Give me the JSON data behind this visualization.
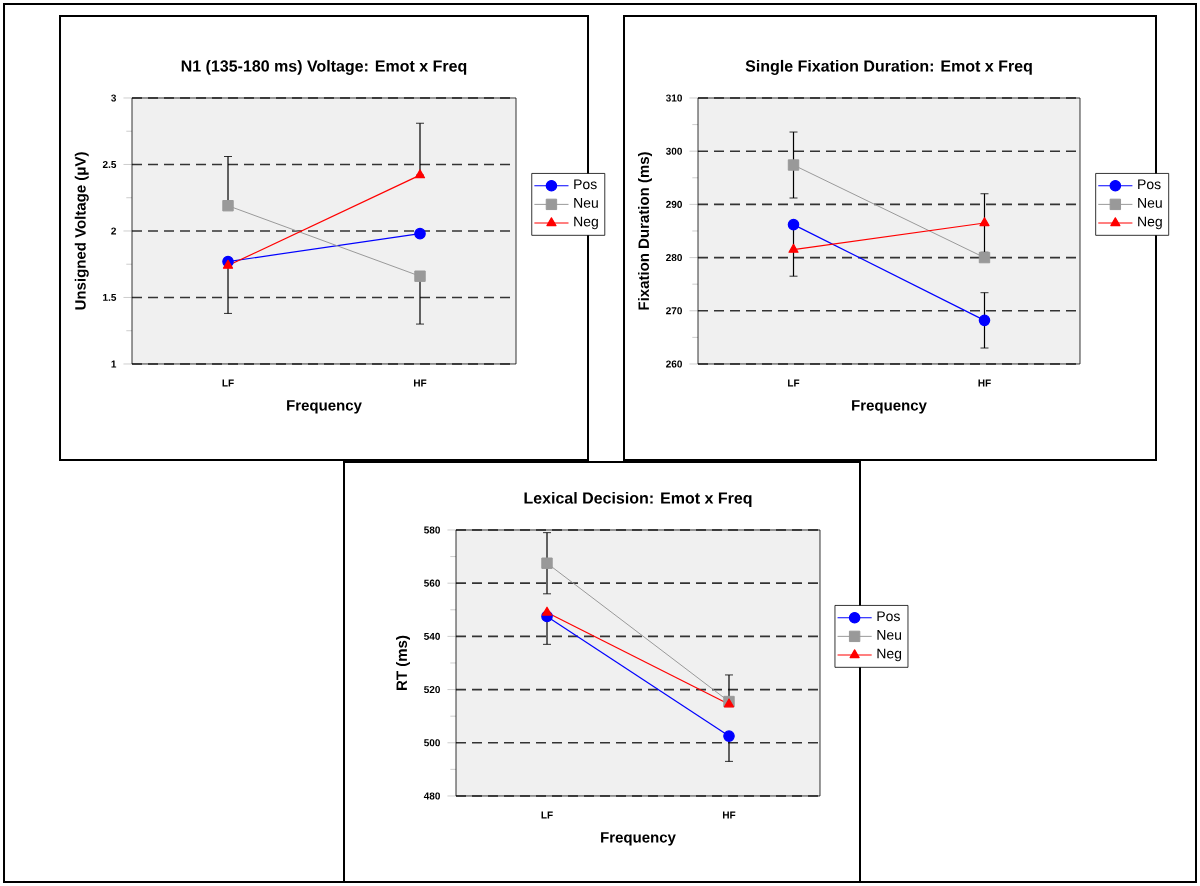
{
  "chart_data": [
    {
      "type": "line",
      "title": "N1 (135-180 ms) Voltage:  Emot x Freq",
      "xlabel": "Frequency",
      "ylabel": "Unsigned Voltage (μV)",
      "categories": [
        "LF",
        "HF"
      ],
      "ylim": [
        1,
        3
      ],
      "yticks": [
        1,
        1.5,
        2,
        2.5,
        3
      ],
      "grid": "y",
      "legend": "right",
      "series": [
        {
          "name": "Pos",
          "color": "#0000ff",
          "marker": "circle",
          "values": [
            1.77,
            1.98
          ],
          "errors": [
            [
              1.38,
              1.77
            ],
            null
          ]
        },
        {
          "name": "Neu",
          "color": "#999999",
          "marker": "square",
          "values": [
            2.19,
            1.66
          ],
          "errors": [
            [
              2.19,
              2.56
            ],
            [
              1.3,
              1.66
            ]
          ]
        },
        {
          "name": "Neg",
          "color": "#ff0000",
          "marker": "triangle",
          "values": [
            1.74,
            2.42
          ],
          "errors": [
            null,
            [
              2.42,
              2.81
            ]
          ]
        }
      ]
    },
    {
      "type": "line",
      "title": "Single Fixation Duration:  Emot x Freq",
      "xlabel": "Frequency",
      "ylabel": "Fixation Duration (ms)",
      "categories": [
        "LF",
        "HF"
      ],
      "ylim": [
        260,
        310
      ],
      "yticks": [
        260,
        270,
        280,
        290,
        300,
        310
      ],
      "grid": "y",
      "legend": "right",
      "series": [
        {
          "name": "Pos",
          "color": "#0000ff",
          "marker": "circle",
          "values": [
            286.2,
            268.2
          ],
          "errors": [
            null,
            5.2
          ]
        },
        {
          "name": "Neu",
          "color": "#999999",
          "marker": "square",
          "values": [
            297.4,
            280.0
          ],
          "errors": [
            6.2,
            null
          ]
        },
        {
          "name": "Neg",
          "color": "#ff0000",
          "marker": "triangle",
          "values": [
            281.5,
            286.5
          ],
          "errors": [
            5.0,
            5.5
          ]
        }
      ]
    },
    {
      "type": "line",
      "title": "Lexical Decision:  Emot x Freq",
      "xlabel": "Frequency",
      "ylabel": "RT (ms)",
      "categories": [
        "LF",
        "HF"
      ],
      "ylim": [
        480,
        580
      ],
      "yticks": [
        480,
        500,
        520,
        540,
        560,
        580
      ],
      "grid": "y",
      "legend": "right",
      "series": [
        {
          "name": "Pos",
          "color": "#0000ff",
          "marker": "circle",
          "values": [
            547.5,
            502.5
          ],
          "errors": [
            [
              537,
              547.5
            ],
            [
              493,
              502.5
            ]
          ]
        },
        {
          "name": "Neu",
          "color": "#999999",
          "marker": "square",
          "values": [
            567.5,
            515.5
          ],
          "errors": [
            [
              556,
              579
            ],
            [
              515.5,
              525.5
            ]
          ]
        },
        {
          "name": "Neg",
          "color": "#ff0000",
          "marker": "triangle",
          "values": [
            549.0,
            514.5
          ],
          "errors": [
            null,
            null
          ]
        }
      ]
    }
  ]
}
